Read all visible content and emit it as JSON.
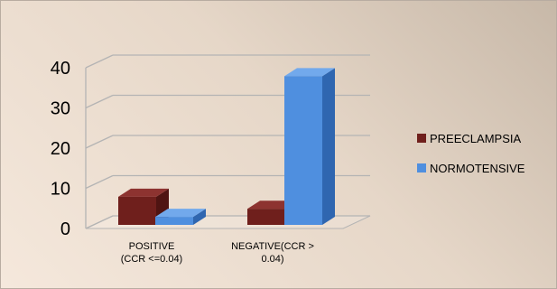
{
  "chart_data": {
    "type": "bar",
    "categories": [
      [
        "POSITIVE",
        "(CCR <=0.04)"
      ],
      [
        "NEGATIVE(CCR >",
        "0.04)"
      ]
    ],
    "series": [
      {
        "name": "PREECLAMPSIA",
        "values": [
          7,
          4
        ]
      },
      {
        "name": "NORMOTENSIVE",
        "values": [
          2,
          37
        ]
      }
    ],
    "ylim": [
      0,
      40
    ],
    "yticks": [
      0,
      10,
      20,
      30,
      40
    ],
    "grid": true,
    "legend": "right",
    "style_3d": true,
    "colors": {
      "PREECLAMPSIA": {
        "front": "#6f1f1c",
        "top": "#8d3330",
        "side": "#4f1412"
      },
      "NORMOTENSIVE": {
        "front": "#4f8fdf",
        "top": "#72a9ec",
        "side": "#2f66b0"
      },
      "grid": "#b4b4b4"
    }
  }
}
